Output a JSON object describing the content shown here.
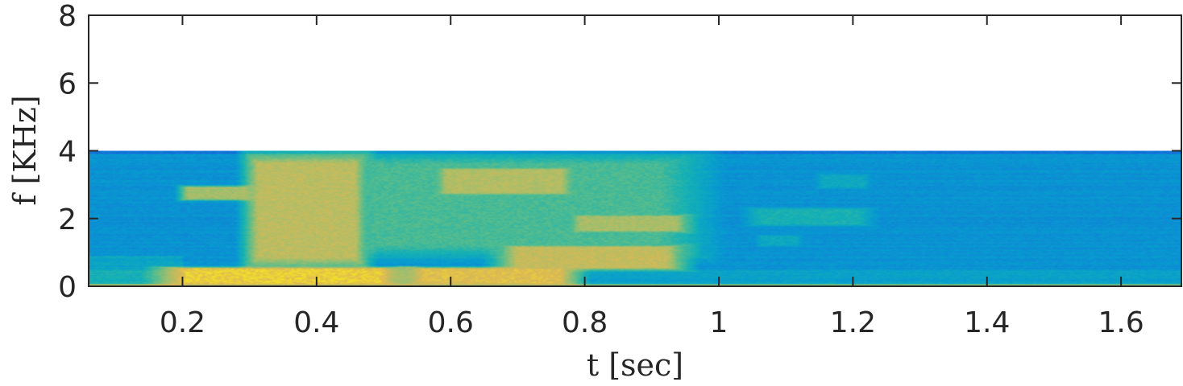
{
  "chart_data": {
    "type": "heatmap",
    "title": "",
    "xlabel": "t [sec]",
    "ylabel": "f [KHz]",
    "xlim": [
      0.06,
      1.69
    ],
    "ylim": [
      0,
      8
    ],
    "xticks": [
      0.2,
      0.4,
      0.6,
      0.8,
      1,
      1.2,
      1.4,
      1.6
    ],
    "xtick_labels": [
      "0.2",
      "0.4",
      "0.6",
      "0.8",
      "1",
      "1.2",
      "1.4",
      "1.6"
    ],
    "yticks": [
      0,
      2,
      4,
      6,
      8
    ],
    "ytick_labels": [
      "0",
      "2",
      "4",
      "6",
      "8"
    ],
    "colormap": "parula",
    "grid": false,
    "z_range": [
      0,
      1
    ],
    "data_extent": {
      "t": [
        0.06,
        1.69
      ],
      "f": [
        0,
        4
      ]
    },
    "energy_regions": [
      {
        "t": [
          0.18,
          0.52
        ],
        "f": [
          0.05,
          0.55
        ],
        "level": 0.92
      },
      {
        "t": [
          0.2,
          0.3
        ],
        "f": [
          2.55,
          2.95
        ],
        "level": 0.75
      },
      {
        "t": [
          0.3,
          0.47
        ],
        "f": [
          0.6,
          3.85
        ],
        "level": 0.8
      },
      {
        "t": [
          0.54,
          0.78
        ],
        "f": [
          0.05,
          0.55
        ],
        "level": 0.88
      },
      {
        "t": [
          0.58,
          0.78
        ],
        "f": [
          2.7,
          3.5
        ],
        "level": 0.78
      },
      {
        "t": [
          0.68,
          0.94
        ],
        "f": [
          0.5,
          1.2
        ],
        "level": 0.82
      },
      {
        "t": [
          0.78,
          0.95
        ],
        "f": [
          1.6,
          2.1
        ],
        "level": 0.76
      },
      {
        "t": [
          0.45,
          0.95
        ],
        "f": [
          1.0,
          3.8
        ],
        "level": 0.6
      },
      {
        "t": [
          1.05,
          1.22
        ],
        "f": [
          1.8,
          2.3
        ],
        "level": 0.5
      },
      {
        "t": [
          1.06,
          1.12
        ],
        "f": [
          1.2,
          1.5
        ],
        "level": 0.45
      },
      {
        "t": [
          1.15,
          1.22
        ],
        "f": [
          2.9,
          3.3
        ],
        "level": 0.45
      }
    ],
    "colors": {
      "low": "#352a87",
      "mid": "#12beb9",
      "high": "#f9fb0e",
      "axis": "#262626"
    }
  }
}
